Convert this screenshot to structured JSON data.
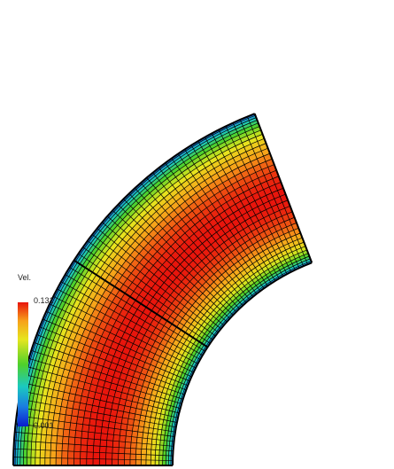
{
  "legend": {
    "title": "Vel.",
    "max_label": "0.131",
    "min_label": "0.001"
  },
  "colormap": [
    "#0a1ccf",
    "#1a7de0",
    "#1bc9c0",
    "#4fd12a",
    "#e6e61e",
    "#f7a11a",
    "#e8140c"
  ]
}
